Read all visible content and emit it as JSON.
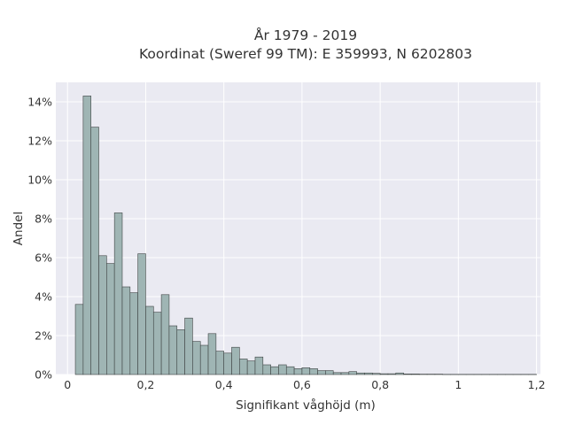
{
  "chart_data": {
    "type": "bar",
    "title_lines": [
      "År 1979 - 2019",
      "Koordinat (Sweref 99 TM): E 359993, N 6202803"
    ],
    "xlabel": "Signifikant våghöjd (m)",
    "ylabel": "Andel",
    "xlim": [
      -0.03,
      1.21
    ],
    "ylim": [
      0,
      0.15
    ],
    "x_ticks": [
      0,
      0.2,
      0.4,
      0.6,
      0.8,
      1,
      1.2
    ],
    "x_tick_labels": [
      "0",
      "0,2",
      "0,4",
      "0,6",
      "0,8",
      "1",
      "1,2"
    ],
    "y_ticks": [
      0,
      0.02,
      0.04,
      0.06,
      0.08,
      0.1,
      0.12,
      0.14
    ],
    "y_tick_labels": [
      "0%",
      "2%",
      "4%",
      "6%",
      "8%",
      "10%",
      "12%",
      "14%"
    ],
    "grid": true,
    "bin_width": 0.02,
    "bin_edges_start": 0.02,
    "values": [
      0.036,
      0.143,
      0.127,
      0.061,
      0.057,
      0.083,
      0.045,
      0.042,
      0.062,
      0.035,
      0.032,
      0.041,
      0.025,
      0.023,
      0.029,
      0.017,
      0.015,
      0.021,
      0.012,
      0.011,
      0.014,
      0.008,
      0.007,
      0.009,
      0.005,
      0.004,
      0.005,
      0.004,
      0.003,
      0.0035,
      0.003,
      0.002,
      0.002,
      0.001,
      0.001,
      0.0015,
      0.0008,
      0.0008,
      0.0006,
      0.0004,
      0.0004,
      0.0008,
      0.0003,
      0.0003,
      0.0002,
      0.0002,
      0.0002,
      0.0001,
      0.0001,
      0.0001,
      0.0001,
      0.0001,
      0.0001,
      0.0001,
      0.0001,
      0.0001,
      0.0001,
      0.0001,
      0.0001
    ],
    "colors": {
      "background": "#eaeaf2",
      "grid": "#ffffff",
      "bar_fill": "#9fb5b4",
      "bar_edge": "#3f4444",
      "text": "#333333"
    }
  }
}
